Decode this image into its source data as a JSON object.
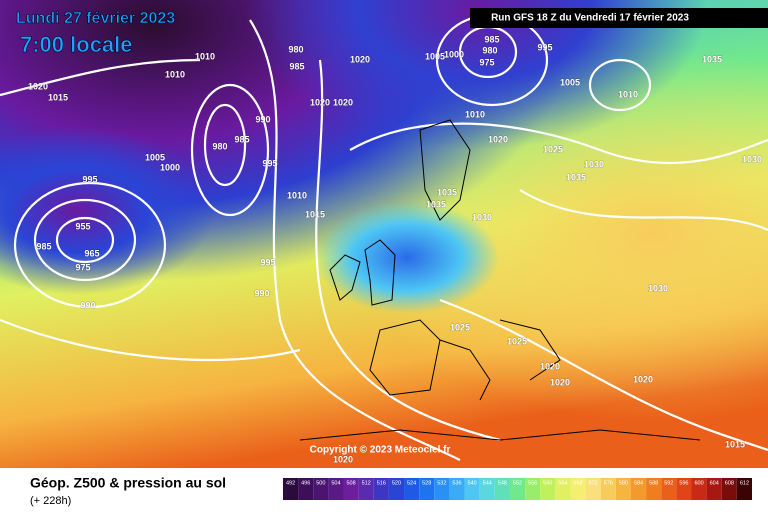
{
  "header": {
    "date": "Lundi 27 février 2023",
    "time": "7:00 locale",
    "run": "Run GFS 18 Z du Vendredi 17 février 2023"
  },
  "copyright": "Copyright © 2023 Meteociel.fr",
  "footer": {
    "title": "Géop. Z500 & pression au sol",
    "lead": "(+ 228h)"
  },
  "isobars": [
    1010,
    1010,
    985,
    980,
    1020,
    1005,
    1000,
    985,
    980,
    975,
    995,
    1005,
    1010,
    1035,
    1020,
    1015,
    990,
    985,
    980,
    1020,
    1020,
    1010,
    1020,
    1025,
    1030,
    1035,
    1030,
    1005,
    1000,
    995,
    995,
    1010,
    1015,
    1035,
    1035,
    1030,
    955,
    965,
    985,
    975,
    995,
    990,
    990,
    1025,
    1025,
    1030,
    1020,
    1020,
    1020,
    1015,
    1020
  ],
  "legend": {
    "values": [
      492,
      496,
      500,
      504,
      508,
      512,
      516,
      520,
      524,
      528,
      532,
      536,
      540,
      544,
      548,
      552,
      556,
      560,
      564,
      568,
      572,
      576,
      580,
      584,
      588,
      592,
      596,
      600,
      604,
      608,
      612
    ],
    "colors": [
      "#2b0a3d",
      "#3d0f5a",
      "#4b1470",
      "#5a1a86",
      "#6b1f9c",
      "#5a2bb0",
      "#3d36c4",
      "#2a45d6",
      "#1f5ae6",
      "#1e74f0",
      "#2a90f5",
      "#3aacf7",
      "#4ec6f4",
      "#5ad8e0",
      "#5fe0b8",
      "#70e88c",
      "#98ee6a",
      "#c0f05a",
      "#e0f060",
      "#f5ee70",
      "#fae07a",
      "#f8cc5c",
      "#f6b440",
      "#f49a2c",
      "#f07e20",
      "#ea601a",
      "#e04418",
      "#c82a16",
      "#a81812",
      "#7a0c0c",
      "#3a0404"
    ]
  }
}
